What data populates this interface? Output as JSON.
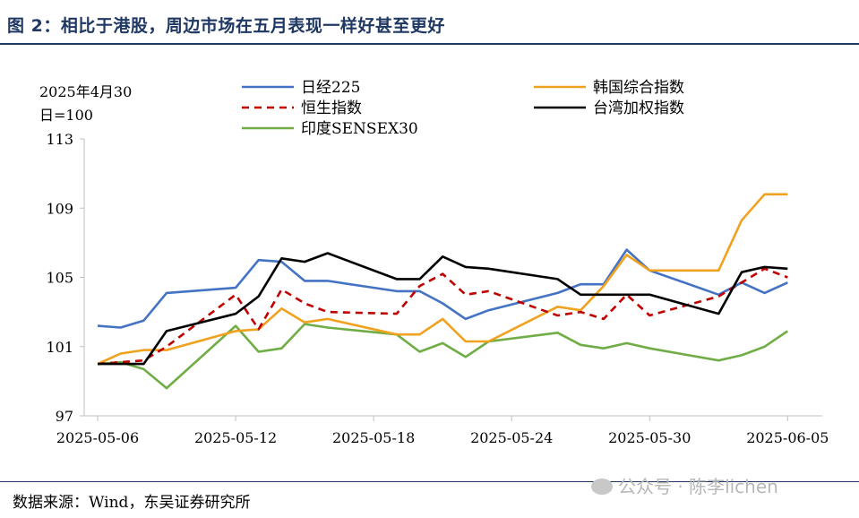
{
  "figure": {
    "title": "图 2：相比于港股，周边市场在五月表现一样好甚至更好",
    "source": "数据来源：Wind，东吴证券研究所",
    "watermark": "公众号 · 陈李lichen"
  },
  "chart_data": {
    "type": "line",
    "base_note_line1": "2025年4月30",
    "base_note_line2": "日=100",
    "ylim": [
      97,
      113
    ],
    "yticks": [
      97,
      101,
      105,
      109,
      113
    ],
    "xticks": [
      "2025-05-06",
      "2025-05-12",
      "2025-05-18",
      "2025-05-24",
      "2025-05-30",
      "2025-06-05"
    ],
    "x": [
      "2025-05-06",
      "2025-05-07",
      "2025-05-08",
      "2025-05-09",
      "2025-05-12",
      "2025-05-13",
      "2025-05-14",
      "2025-05-15",
      "2025-05-16",
      "2025-05-19",
      "2025-05-20",
      "2025-05-21",
      "2025-05-22",
      "2025-05-23",
      "2025-05-26",
      "2025-05-27",
      "2025-05-28",
      "2025-05-29",
      "2025-05-30",
      "2025-06-02",
      "2025-06-03",
      "2025-06-04",
      "2025-06-05",
      "2025-06-06"
    ],
    "series": [
      {
        "name": "日经225",
        "color": "#4472c4",
        "dash": "",
        "values": [
          102.2,
          102.1,
          102.5,
          104.1,
          104.4,
          106.0,
          105.9,
          104.8,
          104.8,
          104.2,
          104.2,
          103.5,
          102.6,
          103.1,
          104.1,
          104.6,
          104.6,
          106.6,
          105.4,
          104.0,
          104.7,
          104.1,
          104.7,
          null
        ]
      },
      {
        "name": "韩国综合指数",
        "color": "#f0a11e",
        "dash": "",
        "values": [
          100.0,
          100.6,
          100.8,
          100.8,
          101.9,
          102.0,
          103.2,
          102.4,
          102.6,
          101.7,
          101.7,
          102.6,
          101.3,
          101.3,
          103.3,
          103.1,
          104.5,
          106.3,
          105.4,
          105.4,
          108.3,
          109.8,
          109.8,
          null
        ]
      },
      {
        "name": "恒生指数",
        "color": "#c00000",
        "dash": "8,6",
        "values": [
          100.0,
          100.1,
          100.2,
          101.0,
          104.0,
          102.0,
          104.3,
          103.5,
          103.0,
          102.9,
          104.5,
          105.2,
          104.0,
          104.2,
          102.8,
          103.0,
          102.6,
          104.0,
          102.8,
          103.9,
          104.7,
          105.5,
          105.0,
          null
        ]
      },
      {
        "name": "台湾加权指数",
        "color": "#000000",
        "dash": "",
        "values": [
          100.0,
          100.0,
          100.0,
          101.9,
          102.9,
          103.9,
          106.1,
          105.9,
          106.4,
          104.9,
          104.9,
          106.2,
          105.6,
          105.5,
          104.9,
          104.0,
          104.0,
          104.0,
          104.0,
          102.9,
          105.3,
          105.6,
          105.5,
          null
        ]
      },
      {
        "name": "印度SENSEX30",
        "color": "#70ad47",
        "dash": "",
        "values": [
          100.0,
          100.1,
          99.7,
          98.6,
          102.2,
          100.7,
          100.9,
          102.3,
          102.1,
          101.7,
          100.7,
          101.2,
          100.4,
          101.3,
          101.8,
          101.1,
          100.9,
          101.2,
          100.9,
          100.2,
          100.5,
          101.0,
          101.9,
          null
        ]
      }
    ]
  }
}
